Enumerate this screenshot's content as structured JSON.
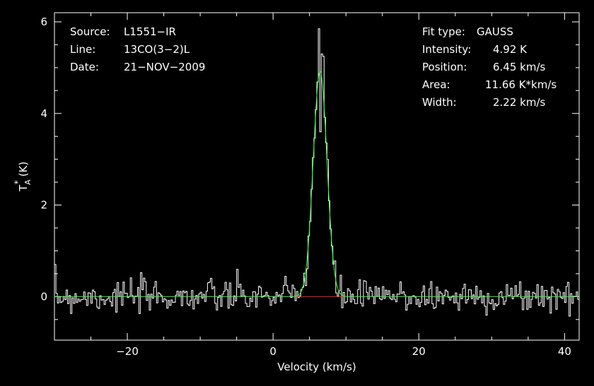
{
  "chart_data": {
    "type": "line",
    "xlabel": "Velocity (km/s)",
    "ylabel_main": "T",
    "ylabel_sub": "A",
    "ylabel_sup": "*",
    "ylabel_unit": "(K)",
    "xlim": [
      -30,
      42
    ],
    "ylim": [
      -0.95,
      6.2
    ],
    "xticks": [
      -20,
      0,
      20,
      40
    ],
    "yticks": [
      0,
      2,
      4,
      6
    ],
    "xtick_labels": [
      "−20",
      "0",
      "20",
      "40"
    ],
    "ytick_labels": [
      "0",
      "2",
      "4",
      "6"
    ],
    "grid": false,
    "series": [
      {
        "role": "spectrum",
        "color": "#ffffff",
        "noise_rms": 0.18,
        "x_range": [
          -30,
          42
        ],
        "channel_width": 0.2
      },
      {
        "role": "fit",
        "color": "#33ff33",
        "x_range": [
          -30,
          42
        ],
        "amplitude": 4.92,
        "center": 6.45,
        "fwhm": 2.22
      },
      {
        "role": "baseline",
        "color": "#ff2020",
        "x": [
          3.3,
          9.6
        ],
        "y": [
          0,
          0
        ]
      }
    ],
    "peak_highlights": [
      {
        "x": 6.3,
        "y": 5.85
      },
      {
        "x": 6.6,
        "y": 5.3
      },
      {
        "x": 6.85,
        "y": 5.25
      },
      {
        "x": 6.45,
        "y": 3.6
      }
    ]
  },
  "header_left": {
    "rows": [
      {
        "label": "Source:",
        "value": "L1551−IR"
      },
      {
        "label": "Line:",
        "value": "13CO(3−2)L"
      },
      {
        "label": "Date:",
        "value": "21−NOV−2009"
      }
    ]
  },
  "header_right": {
    "rows": [
      {
        "label": "Fit type:",
        "value": "GAUSS"
      },
      {
        "label": "Intensity:",
        "value": "4.92 K"
      },
      {
        "label": "Position:",
        "value": "6.45 km/s"
      },
      {
        "label": "Area:",
        "value": "11.66 K*km/s"
      },
      {
        "label": "Width:",
        "value": "2.22 km/s"
      }
    ]
  },
  "colors": {
    "background": "#000000",
    "axes": "#ffffff",
    "spectrum": "#ffffff",
    "fit": "#33ff33",
    "baseline": "#ff2020"
  }
}
